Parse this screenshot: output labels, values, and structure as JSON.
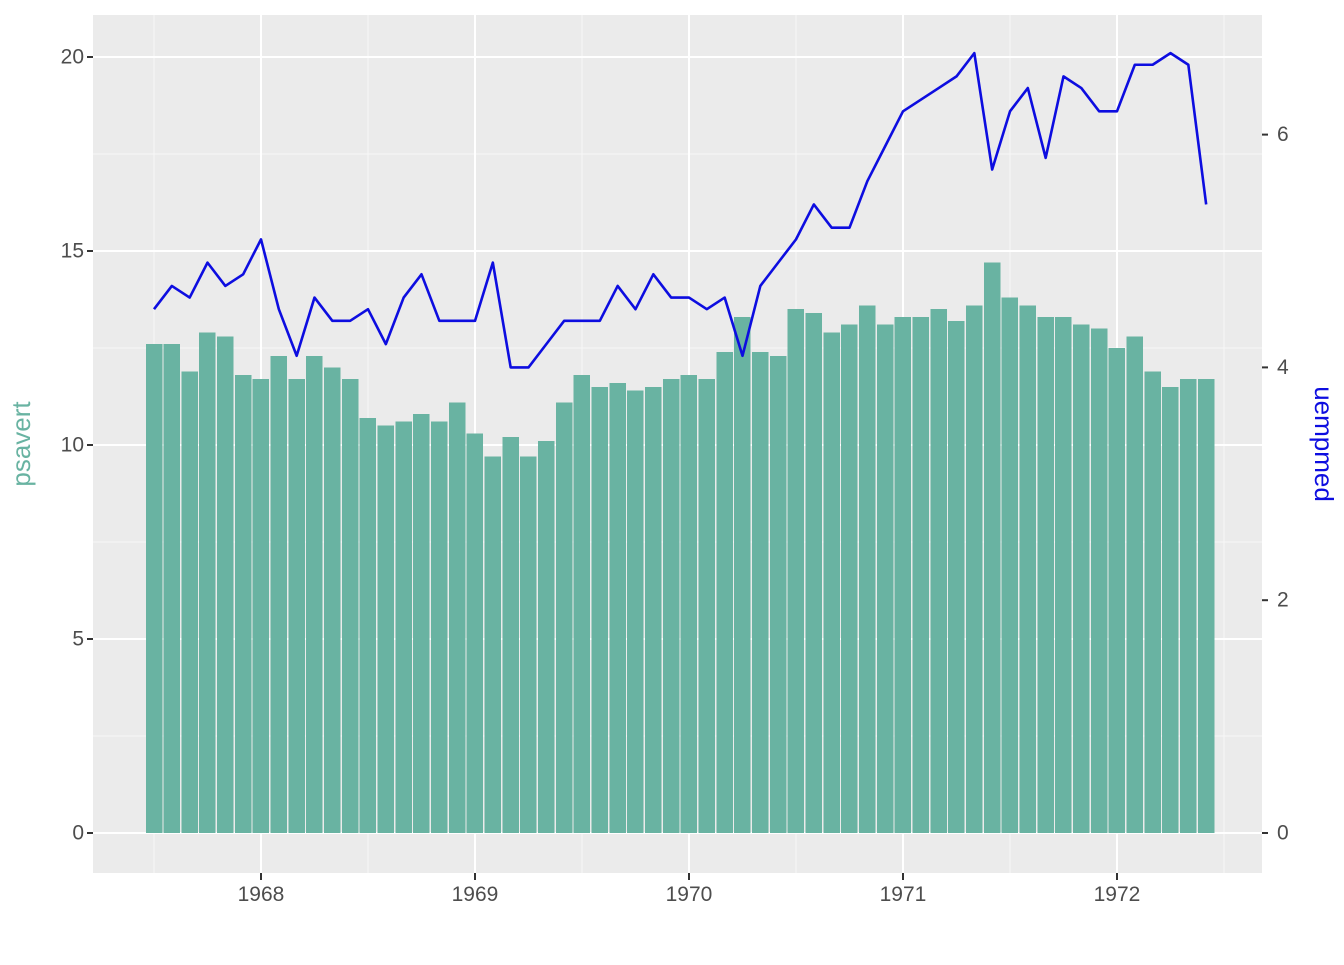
{
  "chart_data": {
    "type": "bar+line-dual-axis",
    "title": "",
    "x": {
      "start": "1967-07",
      "end": "1972-06",
      "frequency": "monthly",
      "n": 60
    },
    "bar_series": {
      "name": "psavert",
      "color": "#69b3a2",
      "values": [
        12.6,
        12.6,
        11.9,
        12.9,
        12.8,
        11.8,
        11.7,
        12.3,
        11.7,
        12.3,
        12.0,
        11.7,
        10.7,
        10.5,
        10.6,
        10.8,
        10.6,
        11.1,
        10.3,
        9.7,
        10.2,
        9.7,
        10.1,
        11.1,
        11.8,
        11.5,
        11.6,
        11.4,
        11.5,
        11.7,
        11.8,
        11.7,
        12.4,
        13.3,
        12.4,
        12.3,
        13.5,
        13.4,
        12.9,
        13.1,
        13.6,
        13.1,
        13.3,
        13.3,
        13.5,
        13.2,
        13.6,
        14.7,
        13.8,
        13.6,
        13.3,
        13.3,
        13.1,
        13.0,
        12.5,
        12.8,
        11.9,
        11.5,
        11.7,
        11.7
      ]
    },
    "line_series": {
      "name": "uempmed",
      "color": "#0d0de0",
      "plotted_as": "uempmed x 3 on left scale",
      "values": [
        4.5,
        4.7,
        4.6,
        4.9,
        4.7,
        4.8,
        5.1,
        4.5,
        4.1,
        4.6,
        4.4,
        4.4,
        4.5,
        4.2,
        4.6,
        4.8,
        4.4,
        4.4,
        4.4,
        4.9,
        4.0,
        4.0,
        4.2,
        4.4,
        4.4,
        4.4,
        4.7,
        4.5,
        4.8,
        4.6,
        4.6,
        4.5,
        4.6,
        4.1,
        4.7,
        4.9,
        5.1,
        5.4,
        5.2,
        5.2,
        5.6,
        5.9,
        6.2,
        6.3,
        6.4,
        6.5,
        6.7,
        5.7,
        6.2,
        6.4,
        5.8,
        6.5,
        6.4,
        6.2,
        6.2,
        6.6,
        6.6,
        6.7,
        6.6,
        5.4
      ]
    },
    "x_axis": {
      "tick_labels": [
        "1968",
        "1969",
        "1970",
        "1971",
        "1972"
      ],
      "tick_month_indices": [
        6,
        18,
        30,
        42,
        54
      ],
      "minor_month_indices": [
        0,
        12,
        24,
        36,
        48,
        60
      ]
    },
    "left_axis": {
      "title": "psavert",
      "color": "#69b3a2",
      "tick_labels": [
        "0",
        "5",
        "10",
        "15",
        "20"
      ],
      "tick_values": [
        0,
        5,
        10,
        15,
        20
      ],
      "minor_tick_values": [
        2.5,
        7.5,
        12.5,
        17.5
      ],
      "range": [
        -1.05,
        21.1
      ]
    },
    "right_axis": {
      "title": "uempmed",
      "color": "#0d0de0",
      "tick_labels": [
        "0",
        "2",
        "4",
        "6"
      ],
      "tick_values": [
        0,
        2,
        4,
        6
      ],
      "left_scale_multiplier": 3
    },
    "legend": "none",
    "grid": true
  },
  "style": {
    "page_bg": "#ffffff",
    "panel_bg": "#ebebeb",
    "grid_major": "#ffffff",
    "grid_minor": "#f7f7f7",
    "tick_text": "#4d4d4d",
    "tick_mark": "#333333",
    "line_width": 2.6,
    "bar_width": 16.5,
    "tick_font_size": 21,
    "title_font_size": 26
  }
}
